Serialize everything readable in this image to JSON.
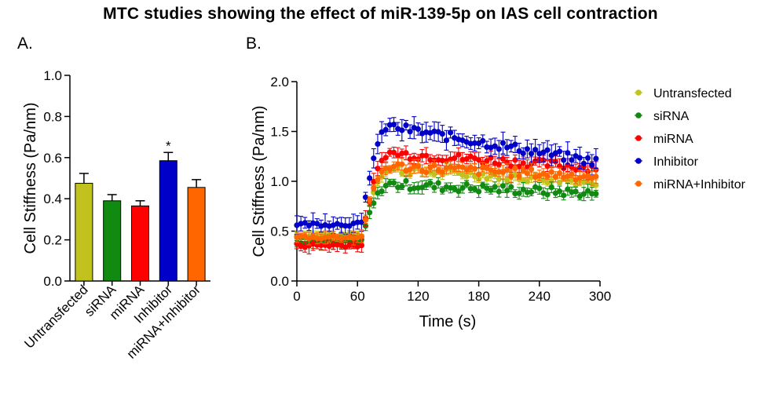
{
  "title": "MTC studies showing the effect of miR-139-5p on IAS cell contraction",
  "panel_a_label": "A.",
  "panel_b_label": "B.",
  "chart_data": [
    {
      "type": "bar",
      "panel": "A.",
      "categories": [
        "Untransfected",
        "siRNA",
        "miRNA",
        "Inhibitor",
        "miRNA+Inhibitor"
      ],
      "values": [
        0.475,
        0.39,
        0.365,
        0.585,
        0.455
      ],
      "errors": [
        0.048,
        0.03,
        0.025,
        0.04,
        0.038
      ],
      "colors": [
        "#c2c21e",
        "#108a10",
        "#ff0000",
        "#0000c8",
        "#ff6600"
      ],
      "annotations": [
        {
          "category": "Inhibitor",
          "text": "*"
        }
      ],
      "xlabel": "",
      "ylabel": "Cell Stiffness (Pa/nm)",
      "ylim": [
        0,
        1.0
      ],
      "yticks": [
        "0.0",
        "0.2",
        "0.4",
        "0.6",
        "0.8",
        "1.0"
      ]
    },
    {
      "type": "scatter",
      "panel": "B.",
      "xlabel": "Time (s)",
      "ylabel": "Cell Stiffness (Pa/nm)",
      "xlim": [
        0,
        300
      ],
      "ylim": [
        0,
        2.0
      ],
      "xticks": [
        "0",
        "60",
        "120",
        "180",
        "240",
        "300"
      ],
      "yticks": [
        "0.0",
        "0.5",
        "1.0",
        "1.5",
        "2.0"
      ],
      "legend_position": "right",
      "error_bars": true,
      "sample_interval_s": 4,
      "series": [
        {
          "name": "Untransfected",
          "color": "#c2c21e",
          "baseline": 0.46,
          "response": 1.12,
          "response_end": 1.0,
          "error": 0.04
        },
        {
          "name": "siRNA",
          "color": "#108a10",
          "baseline": 0.39,
          "response": 0.97,
          "response_end": 0.88,
          "error": 0.05
        },
        {
          "name": "miRNA",
          "color": "#ff0000",
          "baseline": 0.36,
          "response": 1.28,
          "response_end": 1.14,
          "error": 0.06
        },
        {
          "name": "Inhibitor",
          "color": "#0000c8",
          "baseline": 0.57,
          "response": 1.55,
          "response_end": 1.2,
          "error": 0.08
        },
        {
          "name": "miRNA+Inhibitor",
          "color": "#ff6600",
          "baseline": 0.44,
          "response": 1.15,
          "response_end": 1.05,
          "error": 0.05
        }
      ]
    }
  ]
}
